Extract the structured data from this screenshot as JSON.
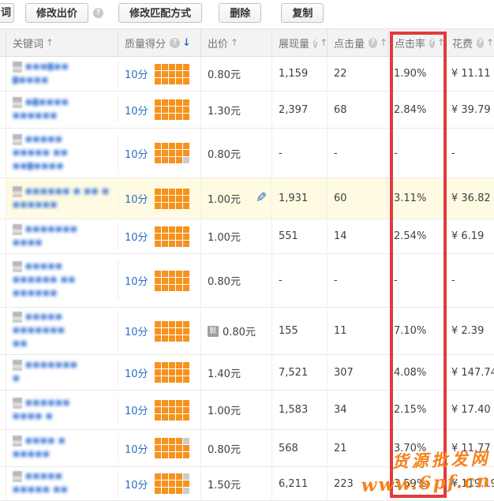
{
  "toolbar": {
    "partial_button_label": "词",
    "modify_bid_label": "修改出价",
    "modify_match_label": "修改匹配方式",
    "delete_label": "删除",
    "copy_label": "复制",
    "help_glyph": "?"
  },
  "table": {
    "columns": [
      {
        "label": "关键词",
        "sort": "up",
        "help": false
      },
      {
        "label": "质量得分",
        "sort": "down",
        "help": true,
        "sort_active": true
      },
      {
        "label": "出价",
        "sort": "up",
        "help": false
      },
      {
        "label": "展现量",
        "sort": "up",
        "help": true
      },
      {
        "label": "点击量",
        "sort": "up",
        "help": true
      },
      {
        "label": "点击率",
        "sort": "up",
        "help": true,
        "highlighted": true
      },
      {
        "label": "花费",
        "sort": "up",
        "help": true
      }
    ],
    "sort_up_glyph": "↑",
    "sort_down_glyph": "↓",
    "rows": [
      {
        "kw": [
          "■■■▇■■",
          "▇■■■■"
        ],
        "score": "10分",
        "grid_gray": [],
        "bid": "0.80元",
        "impressions": "1,159",
        "clicks": "22",
        "ctr": "1.90%",
        "cost": "¥ 11.11"
      },
      {
        "kw": [
          "■▇■■■■",
          "■■■■■■"
        ],
        "score": "10分",
        "grid_gray": [],
        "bid": "1.30元",
        "impressions": "2,397",
        "clicks": "68",
        "ctr": "2.84%",
        "cost": "¥ 39.79"
      },
      {
        "kw": [
          "■■■■■",
          "■■■■■ ■■",
          "■■▇■■■■"
        ],
        "score": "10分",
        "grid_gray": [
          15
        ],
        "bid": "0.80元",
        "impressions": "-",
        "clicks": "-",
        "ctr": "-",
        "cost": "-"
      },
      {
        "kw": [
          "■■■■■■ ■ ■■ ■",
          "■■■■■■"
        ],
        "score": "10分",
        "grid_gray": [],
        "bid": "1.00元",
        "impressions": "1,931",
        "clicks": "60",
        "ctr": "3.11%",
        "cost": "¥ 36.82",
        "highlighted": true
      },
      {
        "kw": [
          "■■■■■■■",
          "■■■■"
        ],
        "score": "10分",
        "grid_gray": [],
        "bid": "1.00元",
        "impressions": "551",
        "clicks": "14",
        "ctr": "2.54%",
        "cost": "¥ 6.19"
      },
      {
        "kw": [
          "■■■■■",
          "■■■■■■ ■■",
          "■■■■■■"
        ],
        "score": "10分",
        "grid_gray": [],
        "bid": "0.80元",
        "impressions": "-",
        "clicks": "-",
        "ctr": "-",
        "cost": "-"
      },
      {
        "kw": [
          "■■■■■",
          "■■■■■■■",
          "■■"
        ],
        "score": "10分",
        "grid_gray": [],
        "bid": "0.80元",
        "bid_badge": "默",
        "impressions": "155",
        "clicks": "11",
        "ctr": "7.10%",
        "cost": "¥ 2.39"
      },
      {
        "kw": [
          "■■■■■■■",
          "■"
        ],
        "score": "10分",
        "grid_gray": [],
        "bid": "1.40元",
        "impressions": "7,521",
        "clicks": "307",
        "ctr": "4.08%",
        "cost": "¥ 147.74"
      },
      {
        "kw": [
          "■■■■■■",
          "■■■■ ■"
        ],
        "score": "10分",
        "grid_gray": [],
        "bid": "1.00元",
        "impressions": "1,583",
        "clicks": "34",
        "ctr": "2.15%",
        "cost": "¥ 17.40"
      },
      {
        "kw": [
          "■■■■ ■",
          "■■■■■"
        ],
        "score": "10分",
        "grid_gray": [
          5
        ],
        "bid": "0.80元",
        "impressions": "568",
        "clicks": "21",
        "ctr": "3.70%",
        "cost": "¥ 11.77"
      },
      {
        "kw": [
          "■■■■■",
          "■■■■■ ■■"
        ],
        "score": "10分",
        "grid_gray": [
          5,
          15
        ],
        "bid": "1.50元",
        "impressions": "6,211",
        "clicks": "223",
        "ctr": "3.59%",
        "cost": "¥ 119.19"
      }
    ]
  },
  "watermark": {
    "line1": "货源批发网",
    "line2": "www.6pf.cn"
  },
  "colors": {
    "quality_orange": "#f6921e",
    "highlight_red": "#e13b3c",
    "link_blue": "#2b6fc0",
    "row_highlight": "#fffbe3",
    "watermark_orange": "#f5831d"
  }
}
